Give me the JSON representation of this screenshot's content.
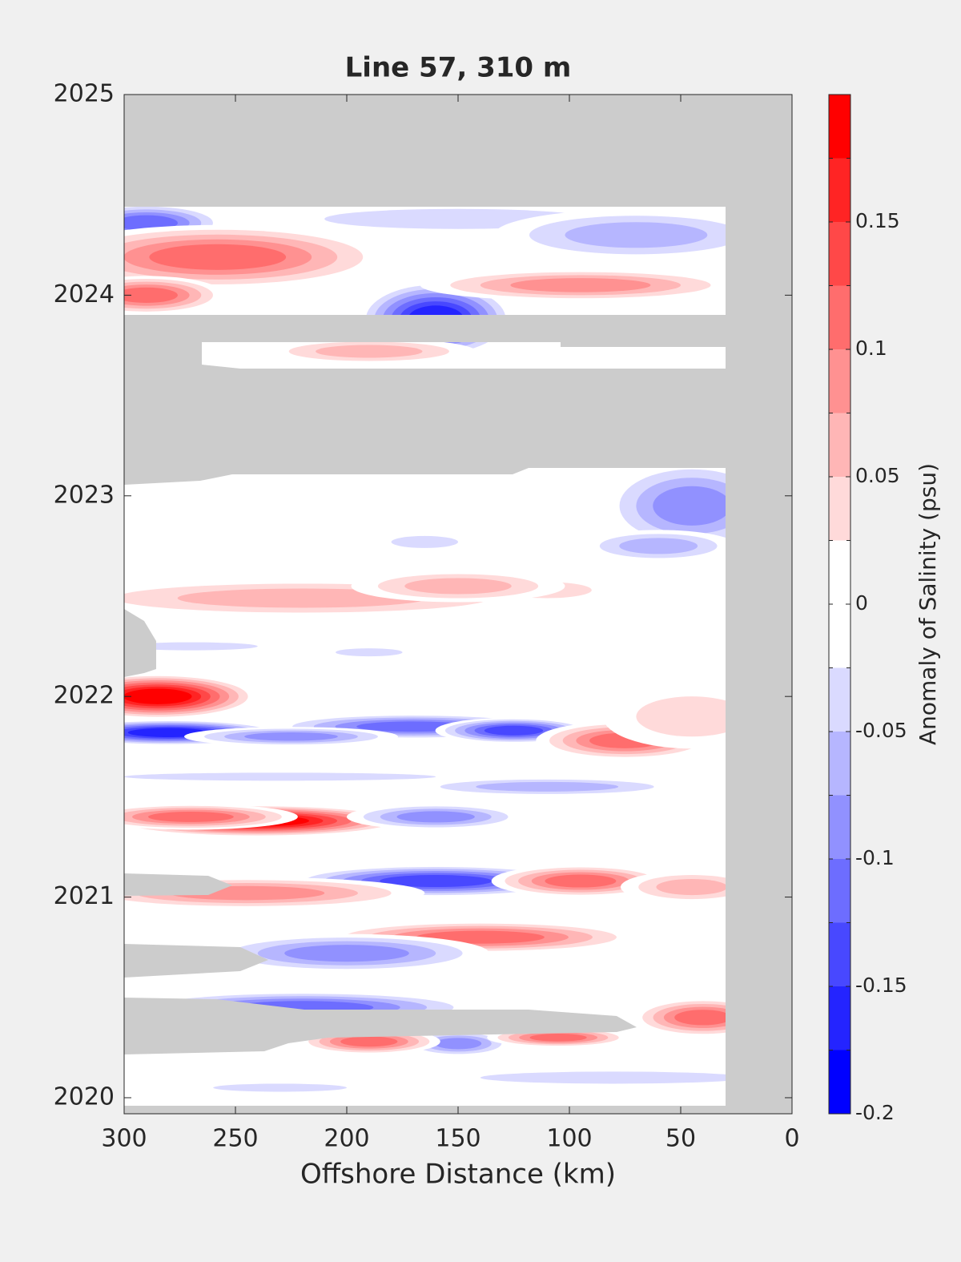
{
  "chart_data": {
    "type": "contour",
    "title": "Line 57, 310 m",
    "xlabel": "Offshore Distance (km)",
    "colorbar_label": "Anomaly of Salinity (psu)",
    "xlim": [
      300,
      0
    ],
    "xticks": [
      300,
      250,
      200,
      150,
      100,
      50,
      0
    ],
    "ylim": [
      2019.92,
      2025
    ],
    "yticks": [
      2020,
      2021,
      2022,
      2023,
      2024,
      2025
    ],
    "clim": [
      -0.2,
      0.2
    ],
    "cticks": [
      -0.2,
      -0.15,
      -0.1,
      -0.05,
      0,
      0.05,
      0.1,
      0.15
    ],
    "colormap": [
      "#0000ff",
      "#2424ff",
      "#4848ff",
      "#6d6dff",
      "#9191ff",
      "#b6b6ff",
      "#dadaff",
      "#ffffff",
      "#ffffff",
      "#ffdada",
      "#ffb6b6",
      "#ff9191",
      "#ff6d6d",
      "#ff4848",
      "#ff2424",
      "#ff0000"
    ],
    "field": [
      {
        "x": 290,
        "y": 2024.36,
        "dx": 22,
        "dy": 0.06,
        "value": -0.12
      },
      {
        "x": 258,
        "y": 2024.19,
        "dx": 48,
        "dy": 0.1,
        "value": 0.11
      },
      {
        "x": 150,
        "y": 2024.38,
        "dx": 60,
        "dy": 0.05,
        "value": -0.05
      },
      {
        "x": 70,
        "y": 2024.3,
        "dx": 40,
        "dy": 0.08,
        "value": -0.06
      },
      {
        "x": 290,
        "y": 2024.0,
        "dx": 22,
        "dy": 0.06,
        "value": 0.1
      },
      {
        "x": 160,
        "y": 2023.88,
        "dx": 22,
        "dy": 0.12,
        "value": -0.16
      },
      {
        "x": 95,
        "y": 2024.05,
        "dx": 45,
        "dy": 0.05,
        "value": 0.08
      },
      {
        "x": 190,
        "y": 2023.72,
        "dx": 30,
        "dy": 0.04,
        "value": 0.05
      },
      {
        "x": 45,
        "y": 2022.95,
        "dx": 25,
        "dy": 0.14,
        "value": -0.1
      },
      {
        "x": 60,
        "y": 2022.75,
        "dx": 22,
        "dy": 0.05,
        "value": -0.06
      },
      {
        "x": 220,
        "y": 2022.49,
        "dx": 70,
        "dy": 0.06,
        "value": 0.06
      },
      {
        "x": 110,
        "y": 2022.53,
        "dx": 20,
        "dy": 0.04,
        "value": 0.04
      },
      {
        "x": 150,
        "y": 2022.55,
        "dx": 30,
        "dy": 0.05,
        "value": 0.06
      },
      {
        "x": 165,
        "y": 2022.77,
        "dx": 15,
        "dy": 0.03,
        "value": -0.04
      },
      {
        "x": 190,
        "y": 2022.22,
        "dx": 15,
        "dy": 0.02,
        "value": -0.04
      },
      {
        "x": 270,
        "y": 2022.25,
        "dx": 30,
        "dy": 0.02,
        "value": -0.04
      },
      {
        "x": 285,
        "y": 2022.0,
        "dx": 28,
        "dy": 0.07,
        "value": 0.18
      },
      {
        "x": 280,
        "y": 2021.82,
        "dx": 32,
        "dy": 0.04,
        "value": -0.17
      },
      {
        "x": 170,
        "y": 2021.85,
        "dx": 40,
        "dy": 0.04,
        "value": -0.12
      },
      {
        "x": 125,
        "y": 2021.83,
        "dx": 22,
        "dy": 0.04,
        "value": -0.14
      },
      {
        "x": 225,
        "y": 2021.8,
        "dx": 30,
        "dy": 0.03,
        "value": -0.1
      },
      {
        "x": 75,
        "y": 2021.78,
        "dx": 25,
        "dy": 0.06,
        "value": 0.1
      },
      {
        "x": 45,
        "y": 2021.9,
        "dx": 25,
        "dy": 0.1,
        "value": 0.04
      },
      {
        "x": 230,
        "y": 2021.6,
        "dx": 70,
        "dy": 0.02,
        "value": -0.05
      },
      {
        "x": 240,
        "y": 2021.38,
        "dx": 42,
        "dy": 0.05,
        "value": 0.19
      },
      {
        "x": 270,
        "y": 2021.4,
        "dx": 30,
        "dy": 0.04,
        "value": 0.12
      },
      {
        "x": 160,
        "y": 2021.4,
        "dx": 25,
        "dy": 0.04,
        "value": -0.08
      },
      {
        "x": 110,
        "y": 2021.55,
        "dx": 40,
        "dy": 0.03,
        "value": -0.06
      },
      {
        "x": 160,
        "y": 2021.08,
        "dx": 42,
        "dy": 0.05,
        "value": -0.14
      },
      {
        "x": 95,
        "y": 2021.08,
        "dx": 25,
        "dy": 0.05,
        "value": 0.1
      },
      {
        "x": 245,
        "y": 2021.02,
        "dx": 50,
        "dy": 0.05,
        "value": 0.09
      },
      {
        "x": 140,
        "y": 2020.8,
        "dx": 45,
        "dy": 0.05,
        "value": 0.12
      },
      {
        "x": 200,
        "y": 2020.72,
        "dx": 40,
        "dy": 0.06,
        "value": -0.08
      },
      {
        "x": 220,
        "y": 2020.45,
        "dx": 50,
        "dy": 0.05,
        "value": -0.12
      },
      {
        "x": 150,
        "y": 2020.27,
        "dx": 15,
        "dy": 0.04,
        "value": -0.08
      },
      {
        "x": 190,
        "y": 2020.28,
        "dx": 20,
        "dy": 0.04,
        "value": 0.11
      },
      {
        "x": 105,
        "y": 2020.3,
        "dx": 20,
        "dy": 0.03,
        "value": 0.11
      },
      {
        "x": 40,
        "y": 2020.4,
        "dx": 20,
        "dy": 0.06,
        "value": 0.1
      },
      {
        "x": 80,
        "y": 2020.1,
        "dx": 60,
        "dy": 0.03,
        "value": -0.05
      },
      {
        "x": 230,
        "y": 2020.05,
        "dx": 30,
        "dy": 0.02,
        "value": -0.04
      },
      {
        "x": 45,
        "y": 2021.05,
        "dx": 20,
        "dy": 0.05,
        "value": 0.07
      }
    ]
  }
}
